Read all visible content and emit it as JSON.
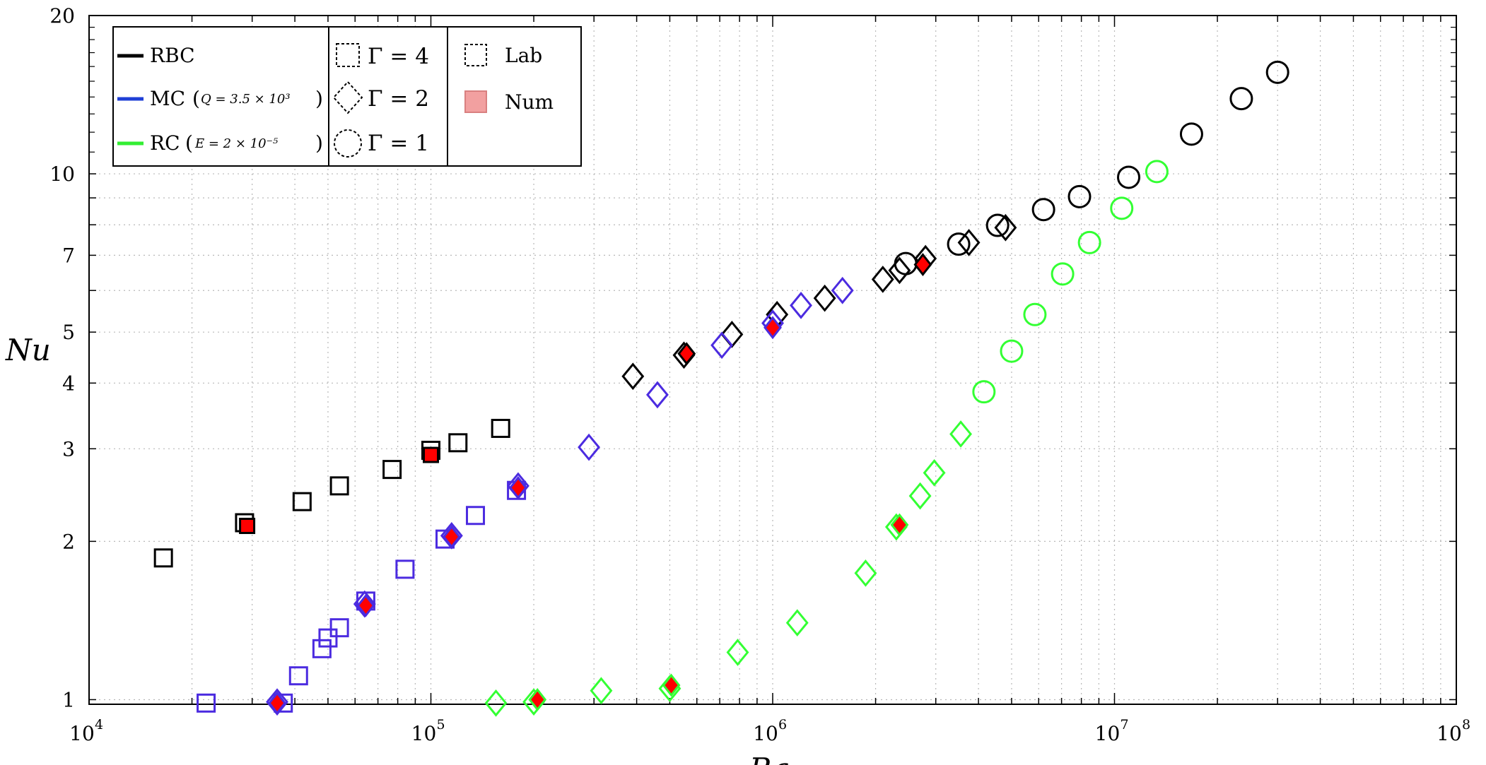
{
  "chart_data": {
    "type": "scatter",
    "title": "",
    "xlabel": "Ra",
    "ylabel": "Nu",
    "xscale": "log",
    "yscale": "log",
    "xlim": [
      10000,
      100000000
    ],
    "ylim": [
      0.98,
      20
    ],
    "x_ticks": [
      {
        "value": 10000,
        "base": "10",
        "exp": "4"
      },
      {
        "value": 100000,
        "base": "10",
        "exp": "5"
      },
      {
        "value": 1000000,
        "base": "10",
        "exp": "6"
      },
      {
        "value": 10000000,
        "base": "10",
        "exp": "7"
      },
      {
        "value": 100000000,
        "base": "10",
        "exp": "8"
      }
    ],
    "y_ticks": [
      {
        "value": 1,
        "label": "1"
      },
      {
        "value": 2,
        "label": "2"
      },
      {
        "value": 3,
        "label": "3"
      },
      {
        "value": 4,
        "label": "4"
      },
      {
        "value": 5,
        "label": "5"
      },
      {
        "value": 7,
        "label": "7"
      },
      {
        "value": 10,
        "label": "10"
      },
      {
        "value": 20,
        "label": "20"
      }
    ],
    "grid": true,
    "colors": {
      "RBC": "#000000",
      "MC": "#4b2be0",
      "RC": "#33ff33",
      "num_fill": "#ff0000"
    },
    "legend": {
      "placement": "top-left",
      "series": [
        {
          "key": "RBC",
          "label": "RBC",
          "param": "",
          "color": "#000000"
        },
        {
          "key": "MC",
          "label": "MC",
          "param": "Q = 3.5 × 10³",
          "color": "#1f3fd6"
        },
        {
          "key": "RC",
          "label": "RC",
          "param": "E = 2 × 10⁻⁵",
          "color": "#33ee33"
        }
      ],
      "aspect": [
        {
          "shape": "square",
          "text": "Γ = 4"
        },
        {
          "shape": "diamond",
          "text": "Γ = 2"
        },
        {
          "shape": "circle",
          "text": "Γ = 1"
        }
      ],
      "source": [
        {
          "kind": "lab",
          "text": "Lab"
        },
        {
          "kind": "num",
          "text": "Num"
        }
      ]
    },
    "series": [
      {
        "name": "RBC",
        "shape": "square",
        "source": "lab",
        "points": [
          [
            16500,
            1.86
          ],
          [
            28500,
            2.17
          ],
          [
            42000,
            2.38
          ],
          [
            54000,
            2.55
          ],
          [
            77000,
            2.74
          ],
          [
            100000,
            2.98
          ],
          [
            120000,
            3.08
          ],
          [
            160000,
            3.28
          ]
        ]
      },
      {
        "name": "RBC",
        "shape": "square",
        "source": "num",
        "points": [
          [
            29000,
            2.14
          ],
          [
            100000,
            2.92
          ]
        ]
      },
      {
        "name": "RBC",
        "shape": "diamond",
        "source": "lab",
        "points": [
          [
            390000,
            4.12
          ],
          [
            550000,
            4.52
          ],
          [
            760000,
            4.95
          ],
          [
            1030000,
            5.4
          ],
          [
            1420000,
            5.8
          ],
          [
            2100000,
            6.3
          ],
          [
            2350000,
            6.55
          ],
          [
            2800000,
            6.9
          ],
          [
            3750000,
            7.4
          ],
          [
            4800000,
            7.9
          ]
        ]
      },
      {
        "name": "RBC",
        "shape": "diamond",
        "source": "num",
        "points": [
          [
            560000,
            4.55
          ],
          [
            2750000,
            6.72
          ]
        ]
      },
      {
        "name": "RBC",
        "shape": "circle",
        "source": "lab",
        "points": [
          [
            2450000,
            6.75
          ],
          [
            3500000,
            7.35
          ],
          [
            4550000,
            7.98
          ],
          [
            6200000,
            8.55
          ],
          [
            7900000,
            9.05
          ],
          [
            11000000,
            9.85
          ],
          [
            16800000,
            11.9
          ],
          [
            23500000,
            13.9
          ],
          [
            30000000,
            15.6
          ]
        ]
      },
      {
        "name": "MC",
        "shape": "square",
        "source": "lab",
        "points": [
          [
            22000,
            0.985
          ],
          [
            37000,
            0.985
          ],
          [
            41000,
            1.11
          ],
          [
            48000,
            1.25
          ],
          [
            50000,
            1.31
          ],
          [
            54000,
            1.37
          ],
          [
            64500,
            1.54
          ],
          [
            84000,
            1.77
          ],
          [
            110000,
            2.02
          ],
          [
            135000,
            2.24
          ],
          [
            178000,
            2.5
          ]
        ]
      },
      {
        "name": "MC",
        "shape": "diamond",
        "source": "lab",
        "points": [
          [
            35500,
            0.99
          ],
          [
            64000,
            1.52
          ],
          [
            115000,
            2.05
          ],
          [
            180000,
            2.55
          ],
          [
            290000,
            3.02
          ],
          [
            460000,
            3.8
          ],
          [
            710000,
            4.72
          ],
          [
            1000000,
            5.2
          ],
          [
            1210000,
            5.62
          ],
          [
            1600000,
            6.0
          ]
        ]
      },
      {
        "name": "MC",
        "shape": "diamond",
        "source": "num",
        "points": [
          [
            35500,
            0.985
          ],
          [
            64500,
            1.51
          ],
          [
            115000,
            2.04
          ],
          [
            180000,
            2.53
          ],
          [
            1000000,
            5.1
          ]
        ]
      },
      {
        "name": "RC",
        "shape": "diamond",
        "source": "lab",
        "points": [
          [
            155000,
            0.985
          ],
          [
            200000,
            0.99
          ],
          [
            500000,
            1.05
          ],
          [
            315000,
            1.04
          ],
          [
            790000,
            1.23
          ],
          [
            1180000,
            1.4
          ],
          [
            1870000,
            1.74
          ],
          [
            2300000,
            2.13
          ],
          [
            2700000,
            2.44
          ],
          [
            2970000,
            2.7
          ],
          [
            3550000,
            3.2
          ]
        ]
      },
      {
        "name": "RC",
        "shape": "diamond",
        "source": "num",
        "points": [
          [
            205000,
            1.0
          ],
          [
            505000,
            1.065
          ],
          [
            2350000,
            2.15
          ]
        ]
      },
      {
        "name": "RC",
        "shape": "circle",
        "source": "lab",
        "points": [
          [
            4150000,
            3.85
          ],
          [
            5000000,
            4.6
          ],
          [
            5850000,
            5.4
          ],
          [
            7050000,
            6.45
          ],
          [
            8450000,
            7.4
          ],
          [
            10500000,
            8.6
          ],
          [
            13300000,
            10.1
          ]
        ]
      }
    ]
  }
}
